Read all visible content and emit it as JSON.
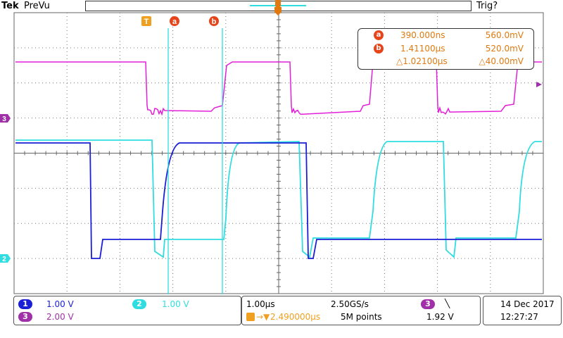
{
  "header": {
    "brand": "Tek",
    "acquisition_state": "PreVu",
    "trigger_state": "Trig?"
  },
  "markers": {
    "trigger_marker": "T",
    "cursor_a_label": "a",
    "cursor_b_label": "b"
  },
  "cursor_readout": {
    "a_label": "a",
    "a_time": "390.000ns",
    "a_value": "560.0mV",
    "b_label": "b",
    "b_time": "1.41100µs",
    "b_value": "520.0mV",
    "delta_time": "△1.02100µs",
    "delta_value": "△40.00mV"
  },
  "channels": {
    "ch1": {
      "label": "1",
      "scale": "1.00 V",
      "color": "#1a1fd6"
    },
    "ch2": {
      "label": "2",
      "scale": "1.00 V",
      "color": "#2fdde0"
    },
    "ch3": {
      "label": "3",
      "scale": "2.00 V",
      "color": "#e21fd8"
    }
  },
  "horizontal": {
    "time_per_div": "1.00µs",
    "sample_rate": "2.50GS/s",
    "trigger_position": "2.490000µs",
    "record_length": "5M points"
  },
  "trigger": {
    "source": "3",
    "slope": "╲",
    "level": "1.92 V"
  },
  "datetime": {
    "date": "14 Dec  2017",
    "time": "12:27:27"
  },
  "colors": {
    "cursor_orange": "#e07a10",
    "cursor_badge": "#e8441a",
    "grid": "#666666"
  }
}
